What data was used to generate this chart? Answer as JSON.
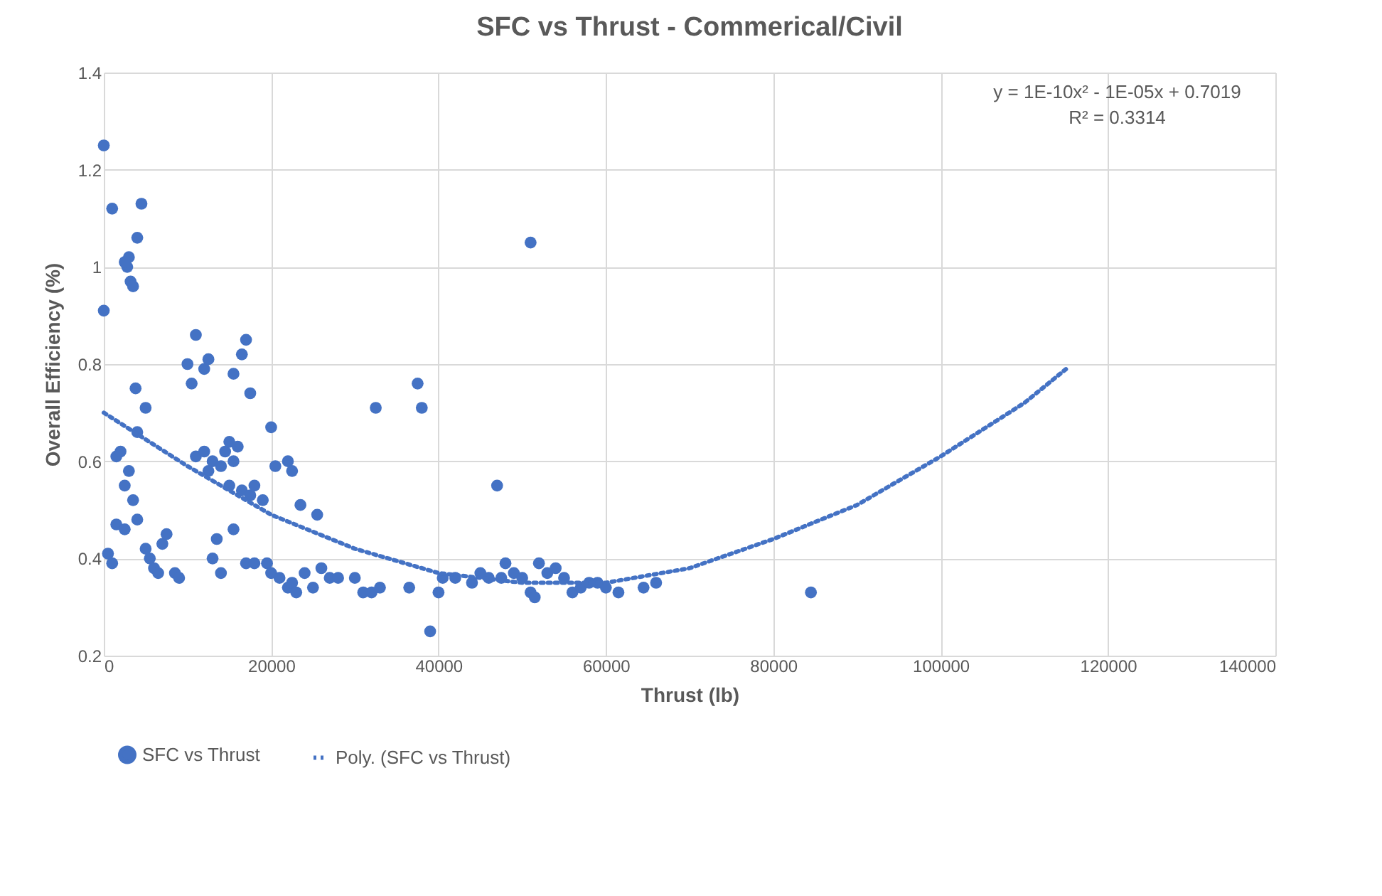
{
  "chart_data": {
    "type": "scatter",
    "title": "SFC vs Thrust - Commerical/Civil",
    "xlabel": "Thrust (lb)",
    "ylabel": "Overall Efficiency (%)",
    "annotations": [
      "y = 1E-10x² - 1E-05x + 0.7019",
      "R² = 0.3314"
    ],
    "xlim": [
      0,
      140000
    ],
    "xticks": [
      0,
      20000,
      40000,
      60000,
      80000,
      100000,
      120000,
      140000
    ],
    "ylim": [
      0.2,
      1.4
    ],
    "yticks": [
      0.2,
      0.4,
      0.6,
      0.8,
      1,
      1.2,
      1.4
    ],
    "grid": true,
    "legend": "bottom",
    "series": [
      {
        "name": "SFC vs Thrust",
        "type": "scatter",
        "marker": "circle",
        "color": "#4472c4",
        "x": [
          0,
          0,
          1000,
          4500,
          4000,
          2800,
          3000,
          3200,
          3500,
          2500,
          500,
          1000,
          1500,
          2000,
          2500,
          3000,
          3500,
          3800,
          4000,
          5000,
          1500,
          2500,
          4000,
          5000,
          5500,
          6000,
          7000,
          7500,
          8500,
          9000,
          6500,
          10000,
          10500,
          11000,
          12000,
          12500,
          11000,
          12000,
          12500,
          13000,
          14000,
          14500,
          15000,
          15500,
          16000,
          15000,
          15500,
          16500,
          17000,
          17500,
          16500,
          17500,
          18000,
          19000,
          20000,
          20500,
          22000,
          22500,
          23500,
          25500,
          13000,
          13500,
          14000,
          15500,
          17000,
          18000,
          19500,
          20000,
          21000,
          22000,
          22500,
          23000,
          24000,
          25000,
          26000,
          27000,
          28000,
          30000,
          31000,
          32000,
          33000,
          32500,
          36500,
          37500,
          38000,
          39000,
          40000,
          40500,
          42000,
          44000,
          45000,
          46000,
          47000,
          47500,
          48000,
          49000,
          50000,
          51000,
          51000,
          51500,
          52000,
          53000,
          54000,
          55000,
          56000,
          57000,
          58000,
          59000,
          60000,
          61500,
          64500,
          66000,
          84500
        ],
        "values": [
          1.25,
          0.91,
          1.12,
          1.13,
          1.06,
          1.0,
          1.02,
          0.97,
          0.96,
          1.01,
          0.41,
          0.39,
          0.61,
          0.62,
          0.55,
          0.58,
          0.52,
          0.75,
          0.66,
          0.71,
          0.47,
          0.46,
          0.48,
          0.42,
          0.4,
          0.38,
          0.43,
          0.45,
          0.37,
          0.36,
          0.37,
          0.8,
          0.76,
          0.86,
          0.79,
          0.81,
          0.61,
          0.62,
          0.58,
          0.6,
          0.59,
          0.62,
          0.64,
          0.6,
          0.63,
          0.55,
          0.78,
          0.82,
          0.85,
          0.74,
          0.54,
          0.53,
          0.55,
          0.52,
          0.67,
          0.59,
          0.6,
          0.58,
          0.51,
          0.49,
          0.4,
          0.44,
          0.37,
          0.46,
          0.39,
          0.39,
          0.39,
          0.37,
          0.36,
          0.34,
          0.35,
          0.33,
          0.37,
          0.34,
          0.38,
          0.36,
          0.36,
          0.36,
          0.33,
          0.33,
          0.34,
          0.71,
          0.34,
          0.76,
          0.71,
          0.25,
          0.33,
          0.36,
          0.36,
          0.35,
          0.37,
          0.36,
          0.55,
          0.36,
          0.39,
          0.37,
          0.36,
          1.05,
          0.33,
          0.32,
          0.39,
          0.37,
          0.38,
          0.36,
          0.33,
          0.34,
          0.35,
          0.35,
          0.34,
          0.33,
          0.34,
          0.35,
          0.33
        ]
      },
      {
        "name": "Poly. (SFC vs Thrust)",
        "type": "line",
        "line_style": "dotted",
        "marker": "none",
        "color": "#4472c4",
        "x": [
          0,
          10000,
          20000,
          30000,
          40000,
          50000,
          60000,
          70000,
          80000,
          90000,
          100000,
          110000,
          115000
        ],
        "values": [
          0.7,
          0.59,
          0.49,
          0.42,
          0.37,
          0.35,
          0.35,
          0.38,
          0.44,
          0.51,
          0.61,
          0.72,
          0.79
        ]
      }
    ]
  }
}
